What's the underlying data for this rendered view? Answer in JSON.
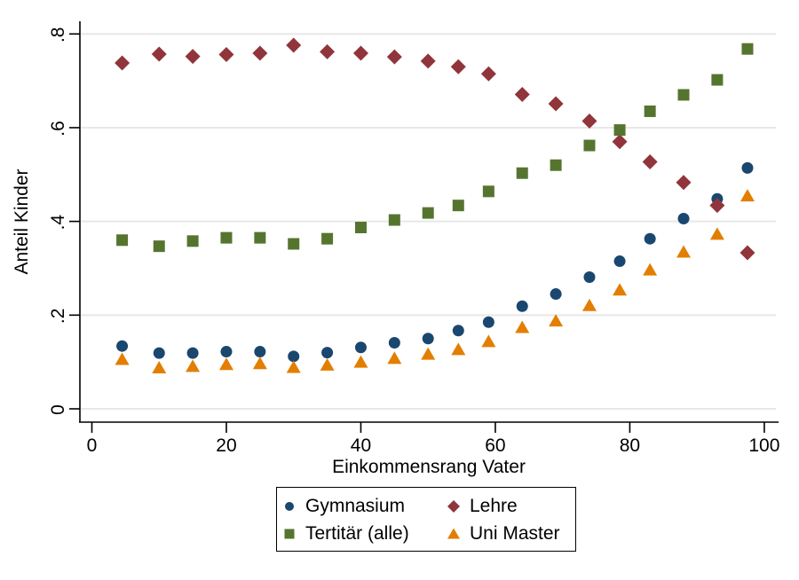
{
  "chart_data": {
    "type": "scatter",
    "title": "",
    "xlabel": "Einkommensrang Vater",
    "ylabel": "Anteil Kinder",
    "xlim": [
      0,
      100
    ],
    "ylim": [
      0,
      0.84
    ],
    "xticks": [
      0,
      20,
      40,
      60,
      80,
      100
    ],
    "xtick_labels": [
      "0",
      "20",
      "40",
      "60",
      "80",
      "100"
    ],
    "yticks": [
      0,
      0.2,
      0.4,
      0.6,
      0.8
    ],
    "ytick_labels": [
      "0",
      ".2",
      ".4",
      ".6",
      ".8"
    ],
    "grid": "horizontal-only",
    "gridline_color": "#e8e8e8",
    "legend_position": "bottom-center",
    "x": [
      4.5,
      10,
      15,
      20,
      25,
      30,
      35,
      40,
      45,
      50,
      54.5,
      59,
      64,
      69,
      74,
      78.5,
      83,
      88,
      93,
      97.5
    ],
    "series": [
      {
        "name": "Gymnasium",
        "marker": "circle",
        "color": "#1a476f",
        "values": [
          0.134,
          0.119,
          0.119,
          0.122,
          0.122,
          0.112,
          0.12,
          0.131,
          0.141,
          0.15,
          0.167,
          0.185,
          0.219,
          0.245,
          0.281,
          0.315,
          0.363,
          0.406,
          0.448,
          0.514
        ]
      },
      {
        "name": "Lehre",
        "marker": "diamond",
        "color": "#90353b",
        "values": [
          0.738,
          0.757,
          0.752,
          0.756,
          0.759,
          0.776,
          0.762,
          0.759,
          0.751,
          0.742,
          0.73,
          0.715,
          0.671,
          0.651,
          0.614,
          0.57,
          0.527,
          0.483,
          0.434,
          0.333
        ]
      },
      {
        "name": "Tertitär (alle)",
        "marker": "square",
        "color": "#55752f",
        "values": [
          0.36,
          0.347,
          0.358,
          0.365,
          0.365,
          0.352,
          0.363,
          0.387,
          0.403,
          0.418,
          0.434,
          0.464,
          0.503,
          0.52,
          0.562,
          0.595,
          0.635,
          0.67,
          0.702,
          0.768
        ]
      },
      {
        "name": "Uni Master",
        "marker": "triangle",
        "color": "#e37e00",
        "values": [
          0.106,
          0.088,
          0.091,
          0.095,
          0.097,
          0.089,
          0.094,
          0.1,
          0.108,
          0.117,
          0.127,
          0.144,
          0.174,
          0.188,
          0.221,
          0.254,
          0.297,
          0.335,
          0.373,
          0.455
        ]
      }
    ]
  }
}
